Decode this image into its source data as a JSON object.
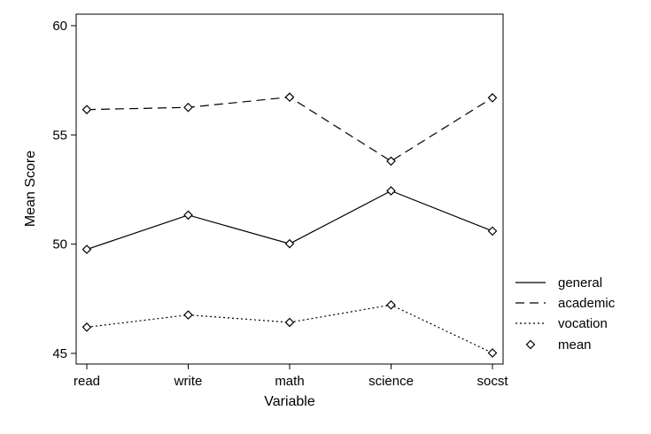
{
  "chart_data": {
    "type": "line",
    "title": "",
    "xlabel": "Variable",
    "ylabel": "Mean Score",
    "categories": [
      "read",
      "write",
      "math",
      "science",
      "socst"
    ],
    "ylim": [
      45,
      60
    ],
    "yticks": [
      45,
      50,
      55,
      60
    ],
    "grid": false,
    "legend_position": "right",
    "series": [
      {
        "name": "general",
        "style": "solid",
        "values": [
          49.76,
          51.33,
          50.02,
          52.44,
          50.6
        ]
      },
      {
        "name": "academic",
        "style": "dashed",
        "values": [
          56.16,
          56.26,
          56.73,
          53.8,
          56.7
        ]
      },
      {
        "name": "vocation",
        "style": "dotted",
        "values": [
          46.2,
          46.76,
          46.42,
          47.22,
          45.02
        ]
      }
    ],
    "marker_legend": {
      "name": "mean",
      "marker": "diamond"
    },
    "colors": {
      "line": "#000000",
      "background": "#ffffff"
    }
  }
}
